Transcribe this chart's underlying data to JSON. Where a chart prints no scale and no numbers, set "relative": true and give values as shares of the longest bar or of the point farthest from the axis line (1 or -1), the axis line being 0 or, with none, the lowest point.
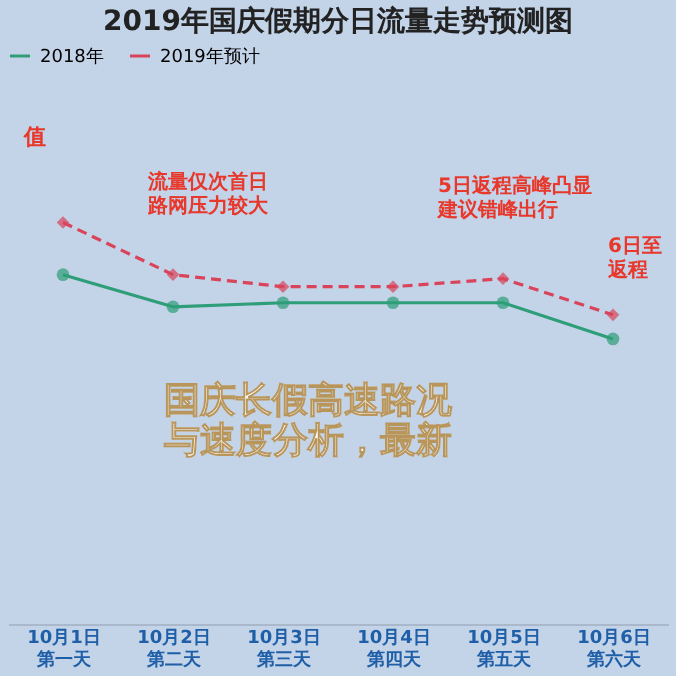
{
  "chart_data": {
    "type": "line",
    "title": "2019年国庆假期分日流量走势预测图",
    "relative": true,
    "categories": [
      "10月1日第一天",
      "10月2日第二天",
      "10月3日第三天",
      "10月4日第四天",
      "10月5日第五天",
      "10月6日第六天"
    ],
    "series": [
      {
        "name": "2018年",
        "color": "#2e9e78",
        "values": [
          0.87,
          0.79,
          0.8,
          0.8,
          0.8,
          0.71
        ],
        "line_style": "solid",
        "marker": "circle"
      },
      {
        "name": "2019年预计",
        "color": "#d9445a",
        "values": [
          1,
          0.87,
          0.84,
          0.84,
          0.86,
          0.77
        ],
        "line_style": "dashed",
        "marker": "diamond"
      }
    ],
    "legend": "top",
    "grid": false,
    "annotations": [
      "值",
      "流量仅次首日路网压力较大",
      "5日返程高峰凸显建议错峰出行",
      "6日至返程",
      "国庆长假高速路况与速度分析，最新"
    ]
  }
}
